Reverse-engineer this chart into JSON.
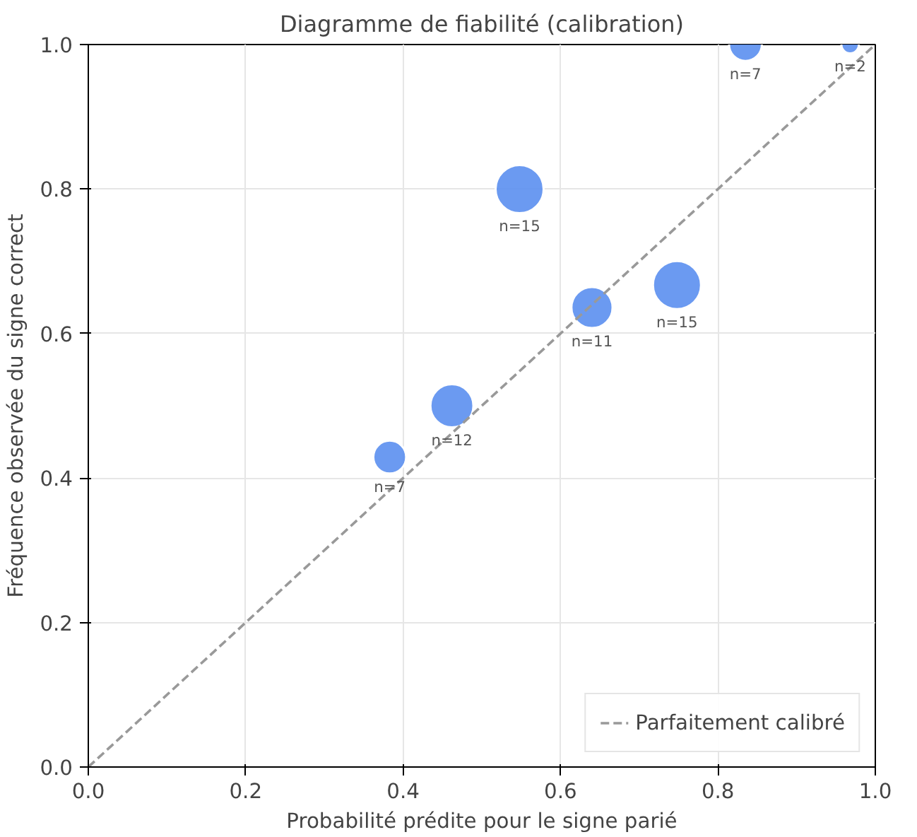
{
  "chart_data": {
    "type": "bubble",
    "title": "Diagramme de fiabilité (calibration)",
    "xlabel": "Probabilité prédite pour le signe parié",
    "ylabel": "Fréquence observée du signe correct",
    "xlim": [
      0,
      1
    ],
    "ylim": [
      0,
      1
    ],
    "xticks": [
      {
        "value": 0,
        "label": "0.0"
      },
      0.2,
      0.4,
      0.6,
      0.8,
      {
        "value": 1,
        "label": "1.0"
      }
    ],
    "yticks": [
      {
        "value": 0,
        "label": "0.0"
      },
      0.2,
      0.4,
      0.6,
      0.8,
      {
        "value": 1,
        "label": "1.0"
      }
    ],
    "grid": true,
    "legend": "bottom right",
    "series": [
      {
        "color": "#5b8ff0",
        "x": [
          0.383,
          0.462,
          0.548,
          0.64,
          0.748,
          0.835,
          0.968
        ],
        "values": [
          0.429,
          0.5,
          0.8,
          0.636,
          0.667,
          1.0,
          1.0
        ],
        "sizes": [
          0.467,
          0.8,
          1,
          0.733,
          1,
          0.467,
          0.133
        ]
      },
      {
        "type": "line",
        "name": "Parfaitement calibré",
        "color": "#999999",
        "line_style": "dashed",
        "x": [
          0,
          1
        ],
        "values": [
          0,
          1
        ]
      }
    ],
    "annotations": [
      {
        "text": "n=7",
        "x": 0.383,
        "y": 0.429
      },
      {
        "text": "n=12",
        "x": 0.462,
        "y": 0.5
      },
      {
        "text": "n=15",
        "x": 0.548,
        "y": 0.8
      },
      {
        "text": "n=11",
        "x": 0.64,
        "y": 0.636
      },
      {
        "text": "n=15",
        "x": 0.748,
        "y": 0.667
      },
      {
        "text": "n=7",
        "x": 0.835,
        "y": 1.0
      },
      {
        "text": "n=2",
        "x": 0.968,
        "y": 1.0
      }
    ]
  }
}
